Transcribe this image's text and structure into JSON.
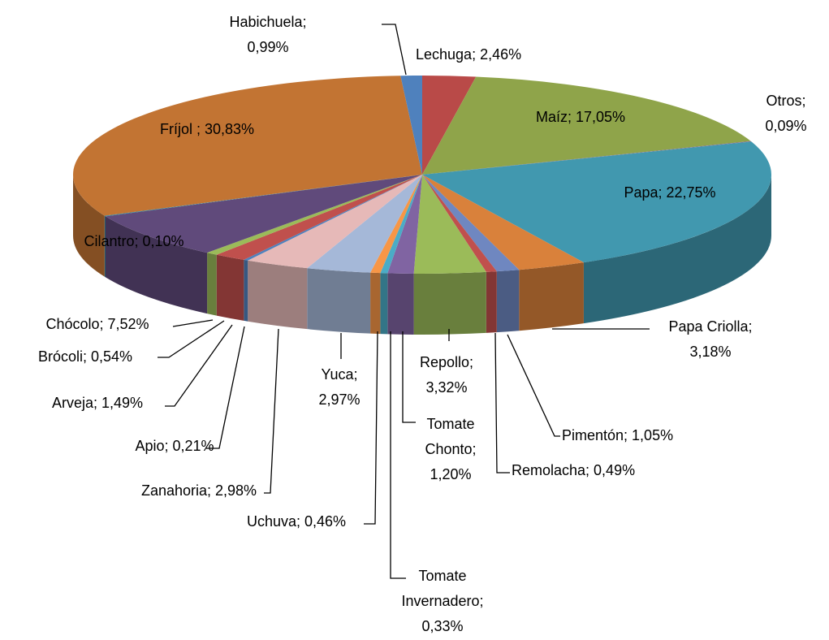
{
  "chart_data": {
    "type": "pie3d",
    "categories": [
      "Lechuga",
      "Maíz",
      "Otros",
      "Papa",
      "Papa Criolla",
      "Pimentón",
      "Remolacha",
      "Repollo",
      "Tomate Chonto",
      "Tomate Invernadero",
      "Uchuva",
      "Yuca",
      "Zanahoria",
      "Apio",
      "Arveja",
      "Brócoli",
      "Chócolo",
      "Cilantro",
      "Fríjol",
      "Habichuela"
    ],
    "values": [
      2.46,
      17.05,
      0.09,
      22.75,
      3.18,
      1.05,
      0.49,
      3.32,
      1.2,
      0.33,
      0.46,
      2.97,
      2.98,
      0.21,
      1.49,
      0.54,
      7.52,
      0.1,
      30.83,
      0.99
    ],
    "value_labels": [
      [
        "Lechuga; 2,46%"
      ],
      [
        "Maíz; 17,05%"
      ],
      [
        "Otros;",
        "0,09%"
      ],
      [
        "Papa; 22,75%"
      ],
      [
        "Papa Criolla;",
        "3,18%"
      ],
      [
        "Pimentón; 1,05%"
      ],
      [
        "Remolacha; 0,49%"
      ],
      [
        "Repollo;",
        "3,32%"
      ],
      [
        "Tomate",
        "Chonto;",
        "1,20%"
      ],
      [
        "Tomate",
        "Invernadero;",
        "0,33%"
      ],
      [
        "Uchuva; 0,46%"
      ],
      [
        "Yuca;",
        "2,97%"
      ],
      [
        "Zanahoria; 2,98%"
      ],
      [
        "Apio; 0,21%"
      ],
      [
        "Arveja; 1,49%"
      ],
      [
        "Brócoli; 0,54%"
      ],
      [
        "Chócolo; 7,52%"
      ],
      [
        "Cilantro; 0,10%"
      ],
      [
        "Fríjol ; 30,83%"
      ],
      [
        "Habichuela;",
        "0,99%"
      ]
    ],
    "colors": [
      "#b94a48",
      "#8fa44a",
      "#7f6796",
      "#4198af",
      "#d9813b",
      "#6f87c0",
      "#c0504d",
      "#9bbb59",
      "#8064a2",
      "#4bacc6",
      "#f79646",
      "#a5b8d8",
      "#e6b9b8",
      "#4f81bd",
      "#c0504d",
      "#9bbb59",
      "#604a7b",
      "#31859c",
      "#c27433",
      "#4f81bd"
    ]
  }
}
